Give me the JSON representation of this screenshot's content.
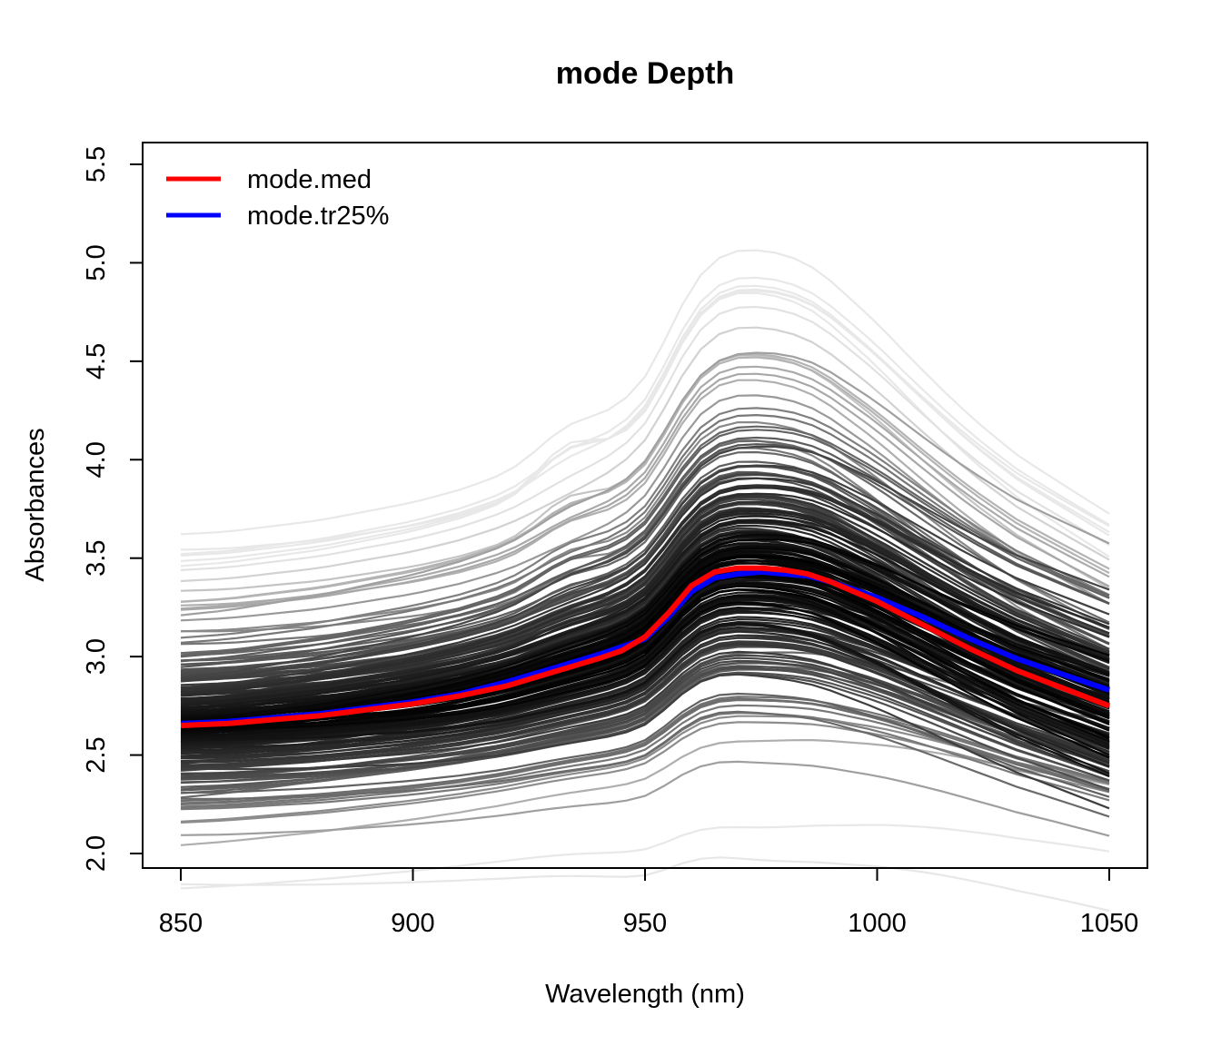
{
  "chart_data": {
    "type": "line",
    "title": "mode Depth",
    "xlabel": "Wavelength (nm)",
    "ylabel": "Absorbances",
    "xlim": [
      850,
      1050
    ],
    "ylim": [
      2.0,
      5.5
    ],
    "x_ticks": [
      850,
      900,
      950,
      1000,
      1050
    ],
    "y_ticks": [
      2.0,
      2.5,
      3.0,
      3.5,
      4.0,
      4.5,
      5.0,
      5.5
    ],
    "x_tick_labels": [
      "850",
      "900",
      "950",
      "1000",
      "1050"
    ],
    "y_tick_labels": [
      "2.0",
      "2.5",
      "3.0",
      "3.5",
      "4.0",
      "4.5",
      "5.0",
      "5.5"
    ],
    "grid": false,
    "legend": {
      "position": "top-left",
      "entries": [
        {
          "label": "mode.med",
          "color": "#ff0000"
        },
        {
          "label": "mode.tr25%",
          "color": "#0000ff"
        }
      ]
    },
    "x": [
      850,
      860,
      870,
      880,
      890,
      900,
      910,
      920,
      930,
      940,
      945,
      950,
      955,
      960,
      965,
      970,
      975,
      980,
      985,
      990,
      1000,
      1010,
      1020,
      1030,
      1040,
      1050
    ],
    "series": [
      {
        "name": "mode.med",
        "color": "#ff0000",
        "values": [
          2.65,
          2.66,
          2.68,
          2.7,
          2.73,
          2.76,
          2.8,
          2.85,
          2.92,
          2.99,
          3.03,
          3.1,
          3.22,
          3.36,
          3.43,
          3.45,
          3.45,
          3.44,
          3.42,
          3.38,
          3.28,
          3.16,
          3.04,
          2.93,
          2.84,
          2.75
        ]
      },
      {
        "name": "mode.tr25%",
        "color": "#0000ff",
        "values": [
          2.66,
          2.67,
          2.69,
          2.71,
          2.74,
          2.77,
          2.81,
          2.87,
          2.94,
          3.01,
          3.05,
          3.09,
          3.2,
          3.33,
          3.4,
          3.42,
          3.43,
          3.42,
          3.41,
          3.38,
          3.3,
          3.2,
          3.09,
          2.99,
          2.91,
          2.83
        ]
      }
    ],
    "background_curves": {
      "color_scale": "gray (darker = deeper, lighter = outlying)",
      "count": 215
    }
  }
}
